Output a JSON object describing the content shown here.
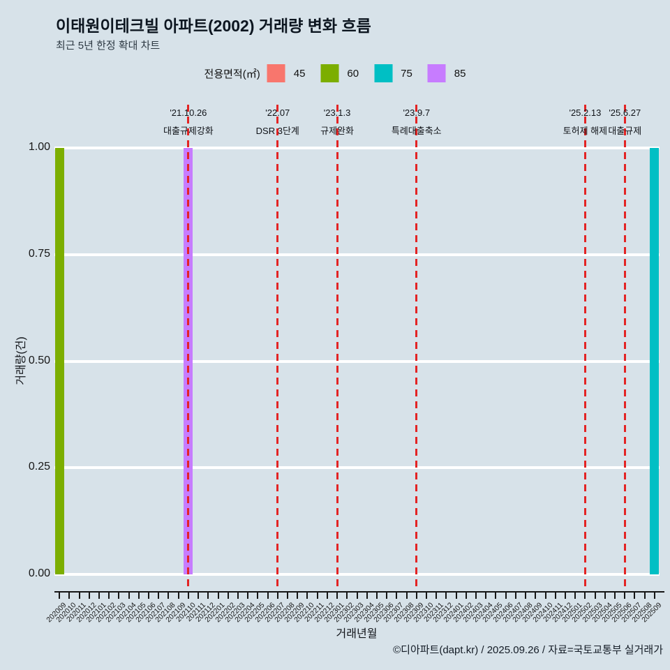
{
  "title": "이태원이테크빌 아파트(2002) 거래량 변화 흐름",
  "subtitle": "최근 5년 한정 확대 차트",
  "legend": {
    "title": "전용면적(㎡)",
    "items": [
      {
        "label": "45",
        "color": "#F8766D"
      },
      {
        "label": "60",
        "color": "#7CAE00"
      },
      {
        "label": "75",
        "color": "#00BFC4"
      },
      {
        "label": "85",
        "color": "#C77CFF"
      }
    ]
  },
  "colors": {
    "background": "#d7e2e9",
    "grid": "#ffffff",
    "event_line": "#e32424",
    "axis": "#161616"
  },
  "chart_data": {
    "type": "bar",
    "title": "이태원이테크빌 아파트(2002) 거래량 변화 흐름",
    "xlabel": "거래년월",
    "ylabel": "거래량(건)",
    "ylim": [
      0,
      1
    ],
    "grid": "horizontal-major-white",
    "legend_position": "top-center",
    "y_ticks": {
      "values": [
        0,
        0.25,
        0.5,
        0.75,
        1
      ],
      "labels": [
        "0.00",
        "0.25",
        "0.50",
        "0.75",
        "1.00"
      ]
    },
    "categories": [
      "202009",
      "202010",
      "202011",
      "202012",
      "202101",
      "202102",
      "202103",
      "202104",
      "202105",
      "202106",
      "202107",
      "202108",
      "202109",
      "202110",
      "202111",
      "202112",
      "202201",
      "202202",
      "202203",
      "202204",
      "202205",
      "202206",
      "202207",
      "202208",
      "202209",
      "202210",
      "202211",
      "202212",
      "202301",
      "202302",
      "202303",
      "202304",
      "202305",
      "202306",
      "202307",
      "202308",
      "202309",
      "202310",
      "202311",
      "202312",
      "202401",
      "202402",
      "202403",
      "202404",
      "202405",
      "202406",
      "202407",
      "202408",
      "202409",
      "202410",
      "202411",
      "202412",
      "202501",
      "202502",
      "202503",
      "202504",
      "202505",
      "202506",
      "202507",
      "202508",
      "202509"
    ],
    "series": [
      {
        "name": "45",
        "color": "#F8766D",
        "points": []
      },
      {
        "name": "60",
        "color": "#7CAE00",
        "points": [
          {
            "x": "202009",
            "y": 1
          }
        ]
      },
      {
        "name": "75",
        "color": "#00BFC4",
        "points": [
          {
            "x": "202509",
            "y": 1
          }
        ]
      },
      {
        "name": "85",
        "color": "#C77CFF",
        "points": [
          {
            "x": "202110",
            "y": 1
          }
        ]
      }
    ],
    "events": [
      {
        "month": "202110",
        "date_label": "'21.10.26",
        "event_label": "대출규제강화"
      },
      {
        "month": "202207",
        "date_label": "'22.07",
        "event_label": "DSR 3단계"
      },
      {
        "month": "202301",
        "date_label": "'23.1.3",
        "event_label": "규제완화"
      },
      {
        "month": "202309",
        "date_label": "'23.9.7",
        "event_label": "특례대출축소"
      },
      {
        "month": "202502",
        "date_label": "'25.2.13",
        "event_label": "토허제 해제"
      },
      {
        "month": "202506",
        "date_label": "'25.6.27",
        "event_label": "대출규제"
      }
    ]
  },
  "footer": {
    "credit": "©디아파트(dapt.kr) / 2025.09.26 / 자료=국토교통부 실거래가"
  }
}
